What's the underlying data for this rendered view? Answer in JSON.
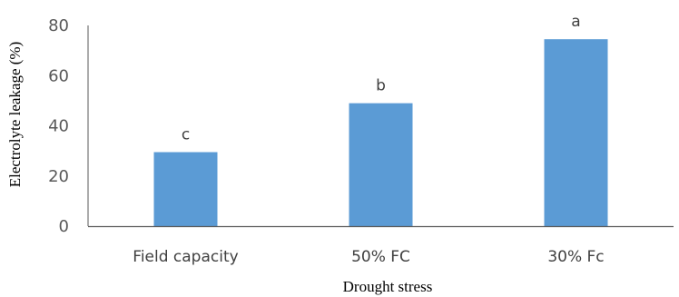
{
  "chart_data": {
    "type": "bar",
    "categories": [
      "Field capacity",
      "50% FC",
      "30% Fc"
    ],
    "values": [
      29.5,
      49,
      74.5
    ],
    "value_labels": [
      "c",
      "b",
      "a"
    ],
    "title": "",
    "xlabel": "Drought stress",
    "ylabel": "Electrolyte leakage (%)",
    "ylim": [
      0,
      80
    ],
    "yticks": [
      "0",
      "20",
      "40",
      "60",
      "80"
    ],
    "grid": false,
    "legend": "none",
    "bar_color": "#5B9BD5",
    "axis_color": "#595959"
  }
}
